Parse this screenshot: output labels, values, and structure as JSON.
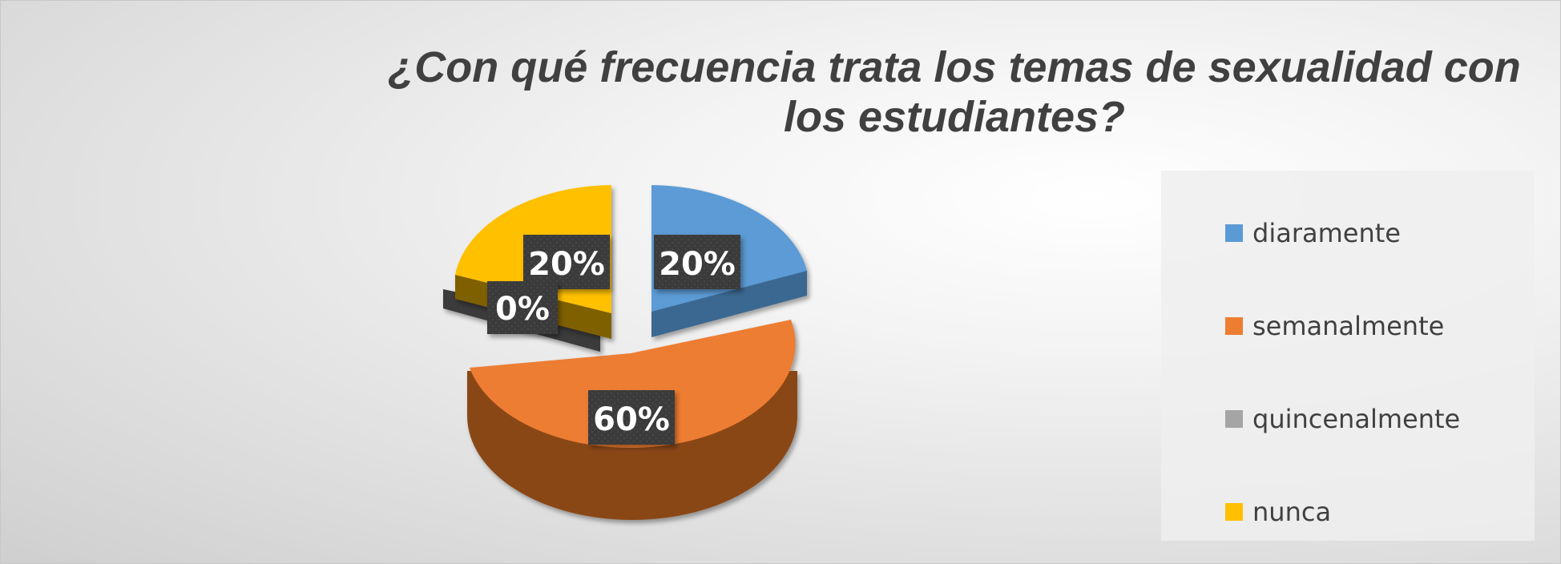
{
  "chart_data": {
    "type": "pie",
    "title": "¿Con qué frecuencia trata los temas de sexualidad con los estudiantes?",
    "categories": [
      "diaramente",
      "semanalmente",
      "quincenalmente",
      "nunca"
    ],
    "values": [
      20,
      60,
      0,
      20
    ],
    "labels": [
      "20%",
      "60%",
      "0%",
      "20%"
    ],
    "colors": [
      "#5B9BD5",
      "#ED7D31",
      "#A5A5A5",
      "#FFC000"
    ],
    "legend_position": "right",
    "style": "3d-exploded"
  }
}
